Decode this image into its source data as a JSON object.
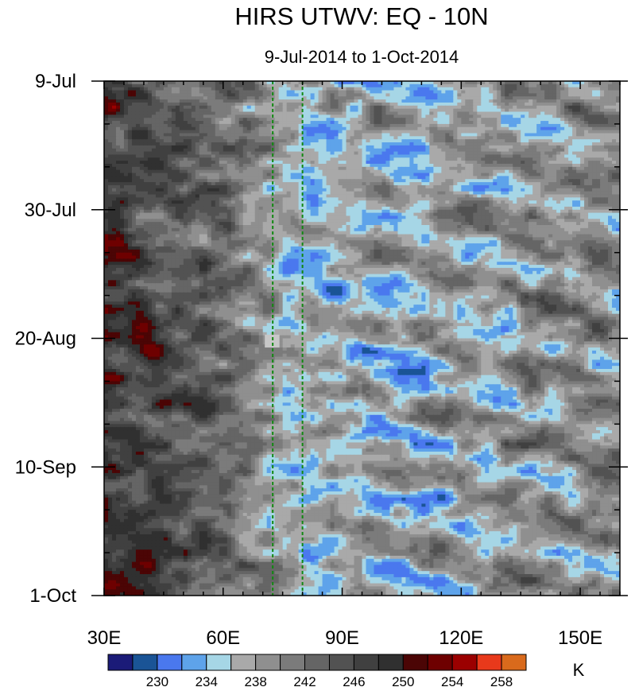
{
  "chart_data": {
    "type": "heatmap",
    "title": "HIRS UTWV: EQ - 10N",
    "subtitle": "9-Jul-2014 to 1-Oct-2014",
    "xlabel": "",
    "ylabel": "",
    "x_range": [
      30,
      160
    ],
    "y_range": [
      "9-Jul",
      "1-Oct"
    ],
    "x_ticks": [
      {
        "value": 30,
        "label": "30E"
      },
      {
        "value": 60,
        "label": "60E"
      },
      {
        "value": 90,
        "label": "90E"
      },
      {
        "value": 120,
        "label": "120E"
      },
      {
        "value": 150,
        "label": "150E"
      }
    ],
    "y_ticks": [
      {
        "day": 0,
        "label": "9-Jul"
      },
      {
        "day": 21,
        "label": "30-Jul"
      },
      {
        "day": 42,
        "label": "20-Aug"
      },
      {
        "day": 63,
        "label": "10-Sep"
      },
      {
        "day": 84,
        "label": "1-Oct"
      }
    ],
    "reference_lines_lon": [
      72.5,
      80
    ],
    "colorbar": {
      "units": "K",
      "colors": [
        "#1b1b78",
        "#1a5496",
        "#4a78ee",
        "#5ea3ea",
        "#a6d6e6",
        "#a9a9a9",
        "#8f8f8f",
        "#7b7b7b",
        "#656565",
        "#525252",
        "#404040",
        "#303030",
        "#4b0505",
        "#6e0000",
        "#9b0000",
        "#e8391b",
        "#d96a1c"
      ],
      "tick_labels": [
        "230",
        "234",
        "238",
        "242",
        "246",
        "250",
        "254",
        "258"
      ]
    },
    "features": [
      {
        "lon": 40,
        "day": 40,
        "value": 255,
        "desc": "warm maximum"
      },
      {
        "lon": 42,
        "day": 44,
        "value": 256,
        "desc": "warm maximum"
      },
      {
        "lon": 41,
        "day": 79,
        "value": 255,
        "desc": "warm maximum"
      },
      {
        "lon": 88,
        "day": 34,
        "value": 230,
        "desc": "moist minimum"
      },
      {
        "lon": 115,
        "day": 68,
        "value": 231,
        "desc": "moist minimum"
      },
      {
        "lon": 72,
        "day": 42,
        "value": 241,
        "desc": "missing data patch"
      }
    ]
  }
}
